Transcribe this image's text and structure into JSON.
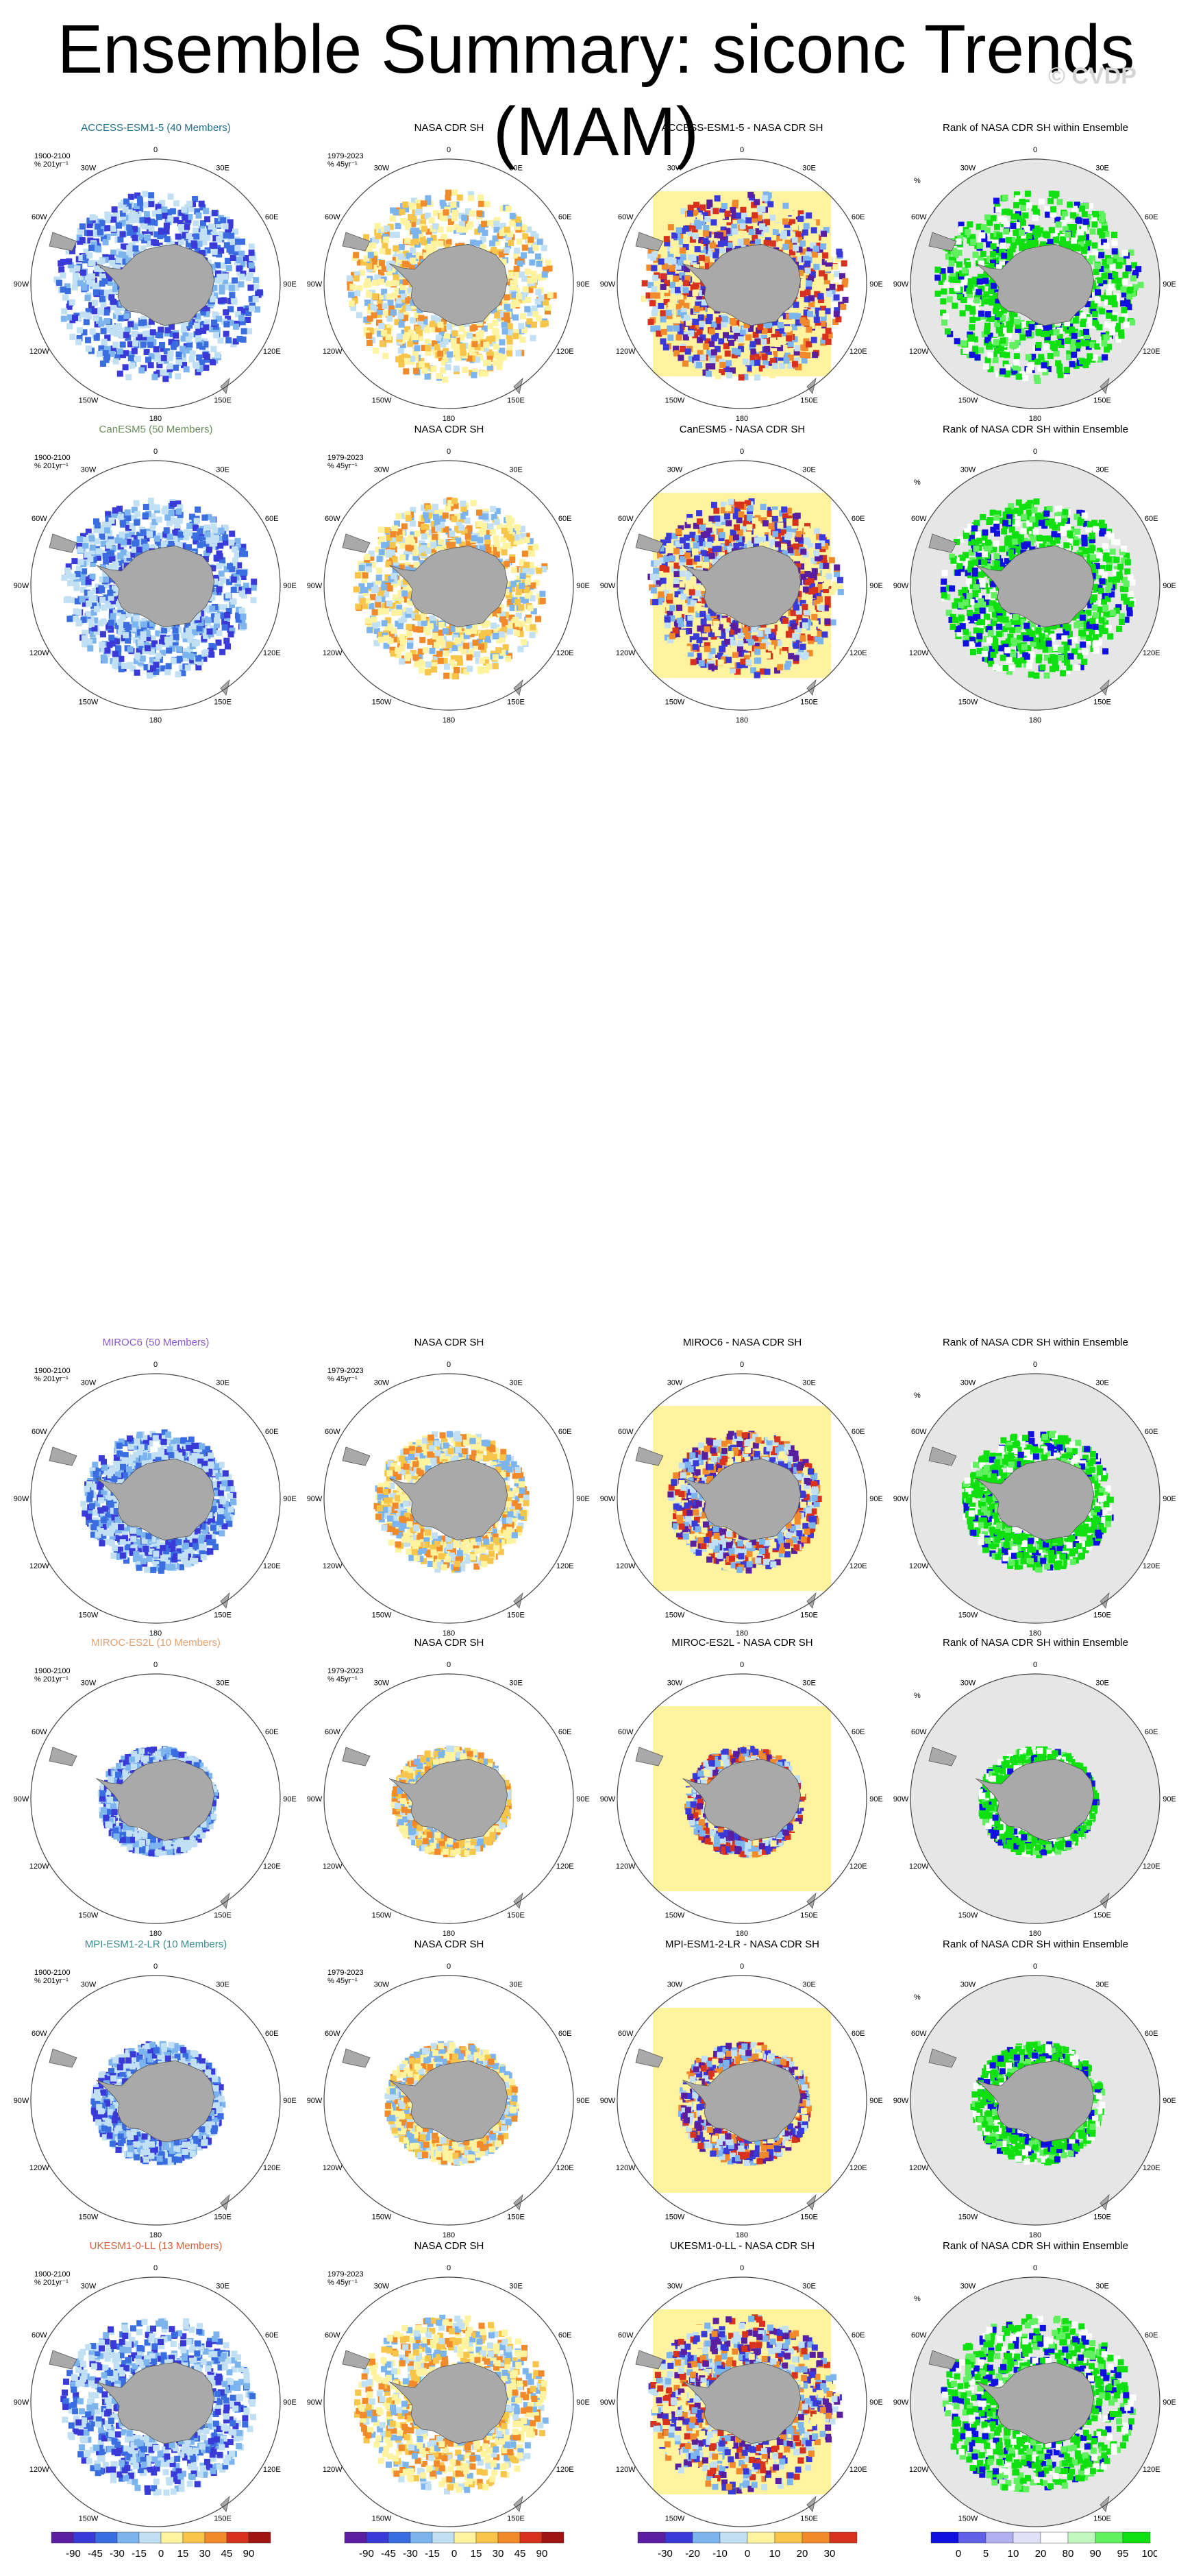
{
  "title": "Ensemble Summary: siconc Trends (MAM)",
  "watermark": "© CVDP",
  "lon_labels": [
    "0",
    "30E",
    "60E",
    "90E",
    "120E",
    "150E",
    "180",
    "150W",
    "120W",
    "90W",
    "60W",
    "30W"
  ],
  "model_label": {
    "period": "1900-2100",
    "units": "% 201yr⁻¹"
  },
  "obs_label": {
    "period": "1979-2023",
    "units": "% 45yr⁻¹"
  },
  "rank_label": {
    "units": "%"
  },
  "rows": [
    {
      "model": {
        "title": "ACCESS-ESM1-5 (40 Members)",
        "color": "#1f6f8b"
      },
      "obs": {
        "title": "NASA CDR SH"
      },
      "diff": {
        "title": "ACCESS-ESM1-5 - NASA CDR SH"
      },
      "rank": {
        "title": "Rank of NASA CDR SH within Ensemble"
      }
    },
    {
      "model": {
        "title": "CanESM5 (50 Members)",
        "color": "#6b8e5a"
      },
      "obs": {
        "title": "NASA CDR SH"
      },
      "diff": {
        "title": "CanESM5 - NASA CDR SH"
      },
      "rank": {
        "title": "Rank of NASA CDR SH within Ensemble"
      }
    },
    {
      "model": {
        "title": "MIROC6 (50 Members)",
        "color": "#8a5ac8"
      },
      "obs": {
        "title": "NASA CDR SH"
      },
      "diff": {
        "title": "MIROC6 - NASA CDR SH"
      },
      "rank": {
        "title": "Rank of NASA CDR SH within Ensemble"
      }
    },
    {
      "model": {
        "title": "MIROC-ES2L (10 Members)",
        "color": "#e0a070"
      },
      "obs": {
        "title": "NASA CDR SH"
      },
      "diff": {
        "title": "MIROC-ES2L - NASA CDR SH"
      },
      "rank": {
        "title": "Rank of NASA CDR SH within Ensemble"
      }
    },
    {
      "model": {
        "title": "MPI-ESM1-2-LR (10 Members)",
        "color": "#3a8a8a"
      },
      "obs": {
        "title": "NASA CDR SH"
      },
      "diff": {
        "title": "MPI-ESM1-2-LR - NASA CDR SH"
      },
      "rank": {
        "title": "Rank of NASA CDR SH within Ensemble"
      }
    },
    {
      "model": {
        "title": "UKESM1-0-LL (13 Members)",
        "color": "#d0603a"
      },
      "obs": {
        "title": "NASA CDR SH"
      },
      "diff": {
        "title": "UKESM1-0-LL - NASA CDR SH"
      },
      "rank": {
        "title": "Rank of NASA CDR SH within Ensemble"
      }
    }
  ],
  "colorbars": [
    {
      "labels": [
        "-90",
        "-45",
        "-30",
        "-15",
        "0",
        "15",
        "30",
        "45",
        "90"
      ],
      "colors": [
        "#5a1fa0",
        "#3a3ad8",
        "#3a6ee0",
        "#7cb4ee",
        "#c2e0f4",
        "#fff3a0",
        "#f6c54a",
        "#f08a2a",
        "#d6321e",
        "#a01414"
      ]
    },
    {
      "labels": [
        "-90",
        "-45",
        "-30",
        "-15",
        "0",
        "15",
        "30",
        "45",
        "90"
      ],
      "colors": [
        "#5a1fa0",
        "#3a3ad8",
        "#3a6ee0",
        "#7cb4ee",
        "#c2e0f4",
        "#fff3a0",
        "#f6c54a",
        "#f08a2a",
        "#d6321e",
        "#a01414"
      ]
    },
    {
      "labels": [
        "-30",
        "-20",
        "-10",
        "0",
        "10",
        "20",
        "30"
      ],
      "colors": [
        "#5a1fa0",
        "#3a3ad8",
        "#7cb4ee",
        "#c2e0f4",
        "#fff3a0",
        "#f6c54a",
        "#f08a2a",
        "#d6321e"
      ]
    },
    {
      "labels": [
        "0",
        "5",
        "10",
        "20",
        "80",
        "90",
        "95",
        "100"
      ],
      "colors": [
        "#1010e0",
        "#6060e8",
        "#b0b0f0",
        "#e0e0f8",
        "#ffffff",
        "#c0f8c0",
        "#60f060",
        "#10e010"
      ]
    }
  ]
}
